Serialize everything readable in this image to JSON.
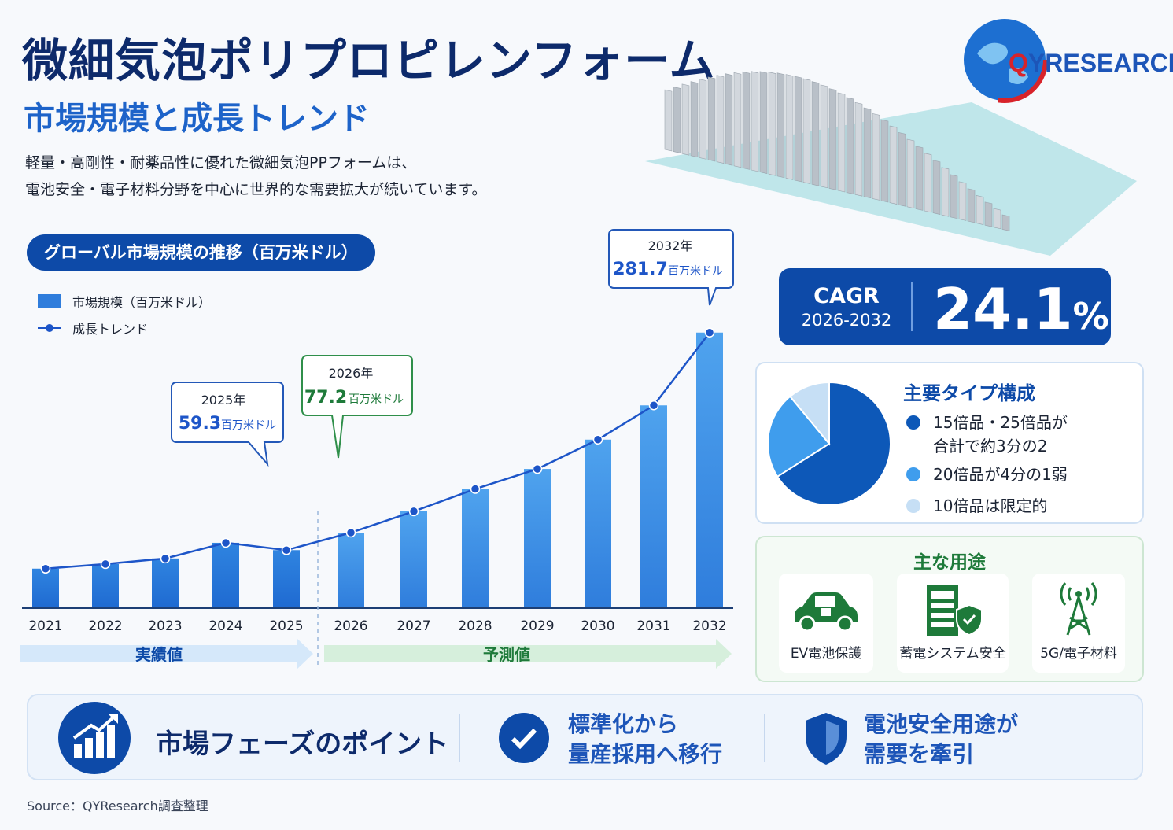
{
  "header": {
    "title": "微細気泡ポリプロピレンフォーム",
    "subtitle": "市場規模と成長トレンド",
    "desc_line1": "軽量・高剛性・耐薬品性に優れた微細気泡PPフォームは、",
    "desc_line2": "電池安全・電子材料分野を中心に世界的な需要拡大が続いています。"
  },
  "logo": {
    "q": "Q",
    "rest": "YRESEARCH"
  },
  "chart_pill": "グローバル市場規模の推移（百万米ドル）",
  "legend": {
    "bar": "市場規模（百万米ドル）",
    "line": "成長トレンド"
  },
  "chart_data": {
    "type": "bar",
    "title": "グローバル市場規模の推移（百万米ドル）",
    "categories": [
      "2021",
      "2022",
      "2023",
      "2024",
      "2025",
      "2026",
      "2027",
      "2028",
      "2029",
      "2030",
      "2031",
      "2032"
    ],
    "series": [
      {
        "name": "市場規模（百万米ドル）",
        "values": [
          40.4,
          45.1,
          50.8,
          66.8,
          59.3,
          77.2,
          99.0,
          121.8,
          142.3,
          172.3,
          207.3,
          281.7
        ]
      },
      {
        "name": "成長トレンド",
        "type": "line",
        "values": [
          40.4,
          45.1,
          50.8,
          66.8,
          59.3,
          77.2,
          99.0,
          121.8,
          142.3,
          172.3,
          207.3,
          281.7
        ]
      }
    ],
    "ylim": [
      0,
      300
    ],
    "grid": false,
    "callouts": [
      {
        "year": "2025年",
        "value": "59.3",
        "unit": "百万米ドル"
      },
      {
        "year": "2026年",
        "value": "77.2",
        "unit": "百万米ドル"
      },
      {
        "year": "2032年",
        "value": "281.7",
        "unit": "百万米ドル"
      }
    ],
    "phases": {
      "actual": "実績値",
      "forecast": "予測値"
    }
  },
  "cagr": {
    "label": "CAGR",
    "years": "2026-2032",
    "value": "24.1",
    "unit": "%"
  },
  "types": {
    "title": "主要タイプ構成",
    "items": [
      {
        "line1": "15倍品・25倍品が",
        "line2": "合計で約3分の2",
        "color": "#0d58b8"
      },
      {
        "line1": "20倍品が4分の1弱",
        "line2": "",
        "color": "#3f9ded"
      },
      {
        "line1": "10倍品は限定的",
        "line2": "",
        "color": "#c6dff5"
      }
    ],
    "pie": [
      66,
      23,
      11
    ]
  },
  "uses": {
    "title": "主な用途",
    "items": [
      {
        "label": "EV電池保護",
        "icon": "ev-car-icon"
      },
      {
        "label": "蓄電システム安全",
        "icon": "storage-shield-icon"
      },
      {
        "label": "5G/電子材料",
        "icon": "antenna-tower-icon"
      }
    ]
  },
  "bottom": {
    "title": "市場フェーズのポイント",
    "point1_line1": "標準化から",
    "point1_line2": "量産採用へ移行",
    "point2_line1": "電池安全用途が",
    "point2_line2": "需要を牽引"
  },
  "source": "Source：QYResearch調査整理"
}
